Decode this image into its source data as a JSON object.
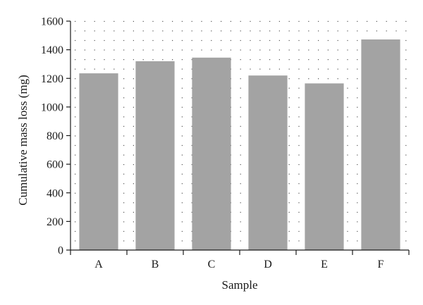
{
  "chart_data": {
    "type": "bar",
    "categories": [
      "A",
      "B",
      "C",
      "D",
      "E",
      "F"
    ],
    "values": [
      1235,
      1320,
      1345,
      1220,
      1165,
      1472
    ],
    "xlabel": "Sample",
    "ylabel": "Cumulative mass loss (mg)",
    "ylim": [
      0,
      1600
    ],
    "yticks": [
      0,
      200,
      400,
      600,
      800,
      1000,
      1200,
      1400,
      1600
    ],
    "grid": "dotted",
    "bar_color": "#a3a3a3",
    "axis_color": "#1a1a1a",
    "grid_color": "#555555"
  }
}
